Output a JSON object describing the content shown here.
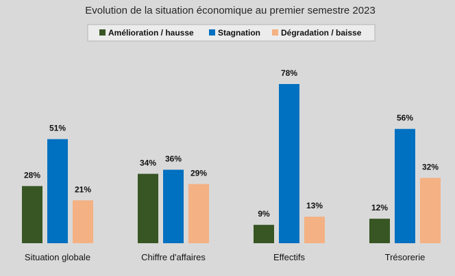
{
  "chart_data": {
    "type": "bar",
    "title": "Evolution de la situation économique au premier semestre 2023",
    "categories": [
      "Situation globale",
      "Chiffre d'affaires",
      "Effectifs",
      "Trésorerie"
    ],
    "series": [
      {
        "name": "Amélioration / hausse",
        "color": "#375623",
        "values": [
          28,
          34,
          9,
          12
        ]
      },
      {
        "name": "Stagnation",
        "color": "#0070c0",
        "values": [
          51,
          36,
          78,
          56
        ]
      },
      {
        "name": "Dégradation / baisse",
        "color": "#f4b183",
        "values": [
          21,
          29,
          13,
          32
        ]
      }
    ],
    "value_suffix": "%",
    "ylim": [
      0,
      80
    ],
    "grid": false,
    "legend_position": "top"
  }
}
